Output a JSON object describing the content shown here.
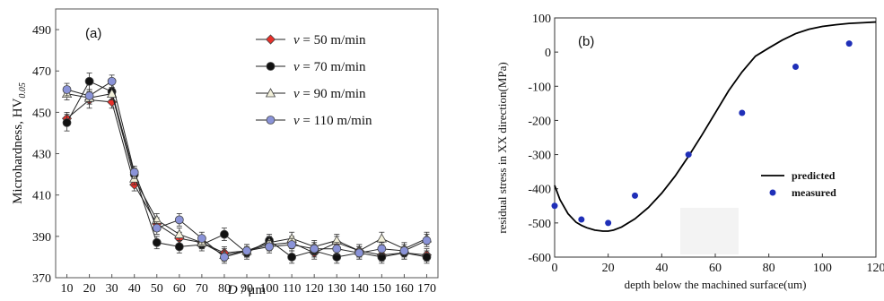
{
  "chart_data": [
    {
      "type": "line",
      "panel_label": "(a)",
      "xlabel_var": "D",
      "xlabel_unit": " / μm",
      "ylabel_main": "Microhardness, HV",
      "ylabel_sub": "0.05",
      "categories": [
        "10",
        "20",
        "30",
        "40",
        "50",
        "60",
        "70",
        "80",
        "90",
        "100",
        "110",
        "120",
        "130",
        "140",
        "150",
        "160",
        "170"
      ],
      "y_ticks": [
        "370",
        "390",
        "410",
        "430",
        "450",
        "470",
        "490"
      ],
      "ylim": [
        370,
        500
      ],
      "legend_position": "top-right",
      "series": [
        {
          "name": "v = 50 m/min",
          "name_var": "v",
          "name_rest": " = 50 m/min",
          "color": "#e8302a",
          "marker": "diamond",
          "values": [
            447,
            456,
            455,
            415,
            396,
            389,
            387,
            382,
            383,
            386,
            387,
            382,
            387,
            383,
            381,
            382,
            381
          ],
          "errors": [
            3,
            4,
            3,
            3,
            3,
            3,
            3,
            3,
            3,
            3,
            3,
            3,
            3,
            3,
            3,
            3,
            3
          ]
        },
        {
          "name": "v = 70 m/min",
          "name_var": "v",
          "name_rest": " = 70 m/min",
          "color": "#111111",
          "marker": "circle",
          "values": [
            445,
            465,
            460,
            420,
            387,
            385,
            386,
            391,
            382,
            388,
            380,
            383,
            380,
            382,
            380,
            382,
            380
          ],
          "errors": [
            4,
            4,
            4,
            3,
            3,
            3,
            3,
            3,
            3,
            3,
            3,
            3,
            3,
            3,
            3,
            3,
            3
          ]
        },
        {
          "name": "v = 90 m/min",
          "name_var": "v",
          "name_rest": " = 90 m/min",
          "color": "#f2f0da",
          "marker": "triangle",
          "values": [
            459,
            457,
            459,
            418,
            398,
            391,
            387,
            381,
            383,
            387,
            389,
            385,
            388,
            383,
            389,
            384,
            389
          ],
          "errors": [
            3,
            3,
            3,
            3,
            3,
            3,
            3,
            3,
            3,
            3,
            3,
            3,
            3,
            3,
            3,
            3,
            3
          ]
        },
        {
          "name": "v = 110 m/min",
          "name_var": "v",
          "name_rest": " = 110 m/min",
          "color": "#8a93d8",
          "marker": "circle",
          "values": [
            461,
            458,
            465,
            421,
            394,
            398,
            389,
            380,
            383,
            385,
            386,
            384,
            384,
            382,
            384,
            383,
            388
          ],
          "errors": [
            3,
            3,
            3,
            3,
            3,
            3,
            3,
            3,
            3,
            3,
            3,
            3,
            3,
            3,
            3,
            3,
            3
          ]
        }
      ]
    },
    {
      "type": "line",
      "panel_label": "(b)",
      "xlabel": "depth below the machined surface(um)",
      "ylabel": "residual stress in XX direction(MPa)",
      "x_ticks": [
        "0",
        "20",
        "40",
        "60",
        "80",
        "100",
        "120"
      ],
      "y_ticks": [
        "100",
        "0",
        "-100",
        "-200",
        "-300",
        "-400",
        "-500",
        "-600"
      ],
      "xlim": [
        0,
        120
      ],
      "ylim": [
        -600,
        100
      ],
      "legend_position": "center-right",
      "series": [
        {
          "name": "predicted",
          "kind": "line",
          "color": "#000000",
          "x": [
            0,
            2,
            5,
            8,
            10,
            12,
            15,
            18,
            20,
            22,
            25,
            30,
            35,
            40,
            45,
            50,
            55,
            60,
            65,
            70,
            75,
            80,
            85,
            90,
            95,
            100,
            105,
            110,
            115,
            120
          ],
          "y": [
            -390,
            -432,
            -473,
            -498,
            -507,
            -514,
            -521,
            -524,
            -524,
            -521,
            -512,
            -488,
            -455,
            -413,
            -363,
            -305,
            -243,
            -178,
            -113,
            -58,
            -12,
            12,
            35,
            54,
            67,
            75,
            80,
            84,
            86,
            88
          ]
        },
        {
          "name": "measured",
          "kind": "scatter",
          "color": "#1f2fb8",
          "x": [
            0,
            10,
            20,
            30,
            50,
            70,
            90,
            110
          ],
          "y": [
            -450,
            -490,
            -500,
            -420,
            -300,
            -178,
            -43,
            25
          ]
        }
      ]
    }
  ]
}
